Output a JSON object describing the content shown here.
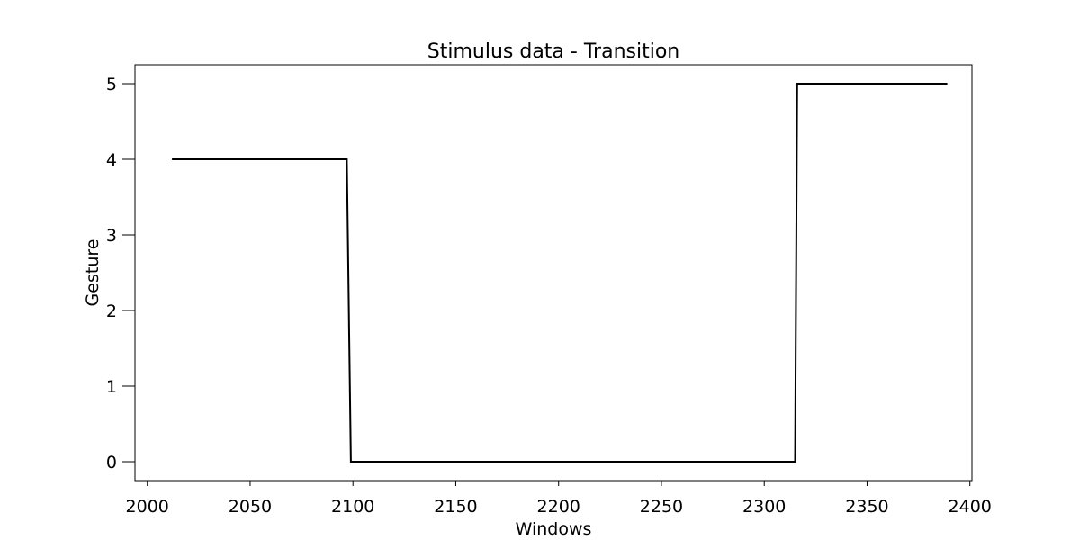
{
  "chart_data": {
    "type": "line",
    "title": "Stimulus data - Transition",
    "xlabel": "Windows",
    "ylabel": "Gesture",
    "xlim": [
      1994,
      2401
    ],
    "ylim": [
      -0.25,
      5.25
    ],
    "xticks": [
      2000,
      2050,
      2100,
      2150,
      2200,
      2250,
      2300,
      2350,
      2400
    ],
    "yticks": [
      0,
      1,
      2,
      3,
      4,
      5
    ],
    "grid": false,
    "legend": "none",
    "series": [
      {
        "color": "#000000",
        "x": [
          2012,
          2097,
          2099,
          2315,
          2316,
          2389
        ],
        "y": [
          4,
          4,
          0,
          0,
          5,
          5
        ]
      }
    ]
  }
}
